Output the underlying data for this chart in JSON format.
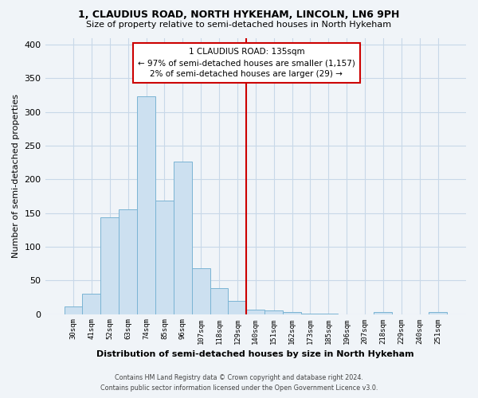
{
  "title_line1": "1, CLAUDIUS ROAD, NORTH HYKEHAM, LINCOLN, LN6 9PH",
  "title_line2": "Size of property relative to semi-detached houses in North Hykeham",
  "xlabel": "Distribution of semi-detached houses by size in North Hykeham",
  "ylabel": "Number of semi-detached properties",
  "bin_labels": [
    "30sqm",
    "41sqm",
    "52sqm",
    "63sqm",
    "74sqm",
    "85sqm",
    "96sqm",
    "107sqm",
    "118sqm",
    "129sqm",
    "140sqm",
    "151sqm",
    "162sqm",
    "173sqm",
    "185sqm",
    "196sqm",
    "207sqm",
    "218sqm",
    "229sqm",
    "240sqm",
    "251sqm"
  ],
  "bar_heights": [
    11,
    30,
    144,
    155,
    323,
    168,
    226,
    68,
    38,
    20,
    7,
    5,
    3,
    1,
    1,
    0,
    0,
    3,
    0,
    0,
    3
  ],
  "bar_color": "#cce0f0",
  "bar_edge_color": "#7ab4d4",
  "highlight_line_color": "#cc0000",
  "annotation_title": "1 CLAUDIUS ROAD: 135sqm",
  "annotation_line1": "← 97% of semi-detached houses are smaller (1,157)",
  "annotation_line2": "2% of semi-detached houses are larger (29) →",
  "annotation_box_color": "#ffffff",
  "annotation_box_edge_color": "#cc0000",
  "ylim": [
    0,
    410
  ],
  "yticks": [
    0,
    50,
    100,
    150,
    200,
    250,
    300,
    350,
    400
  ],
  "footer_line1": "Contains HM Land Registry data © Crown copyright and database right 2024.",
  "footer_line2": "Contains public sector information licensed under the Open Government Licence v3.0.",
  "bg_color": "#f0f4f8",
  "plot_bg_color": "#f0f4f8",
  "grid_color": "#c8d8e8"
}
